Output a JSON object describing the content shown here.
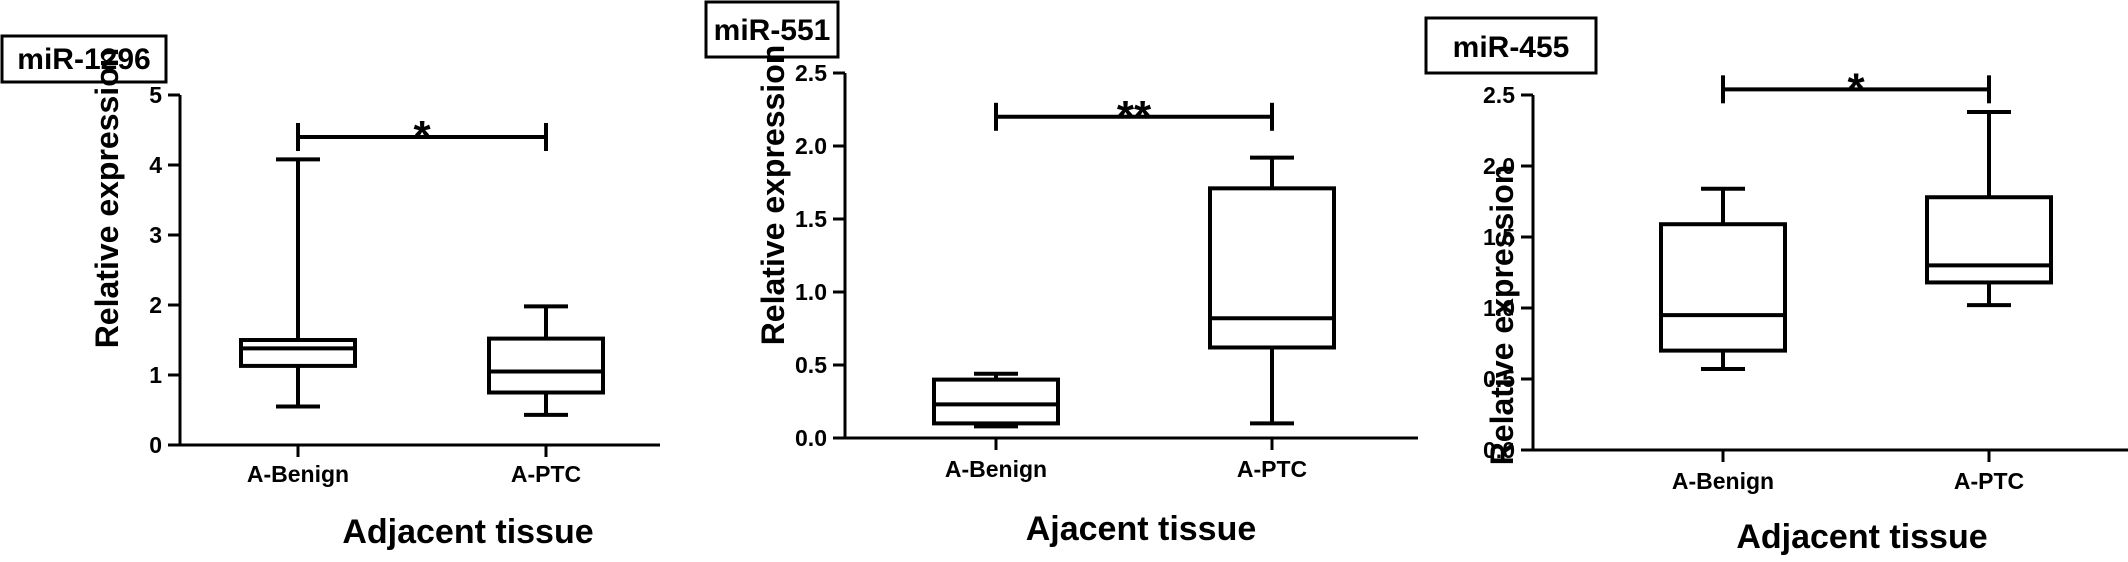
{
  "chart_data": [
    {
      "type": "box",
      "title": "miR-1296",
      "xlabel": "Adjacent tissue",
      "ylabel": "Relative expression",
      "ylim": [
        0,
        5
      ],
      "yticks": [
        "0",
        "1",
        "2",
        "3",
        "4",
        "5"
      ],
      "categories": [
        "A-Benign",
        "A-PTC"
      ],
      "boxes": [
        {
          "name": "A-Benign",
          "min": 0.55,
          "q1": 1.13,
          "median": 1.38,
          "q3": 1.5,
          "max": 4.08
        },
        {
          "name": "A-PTC",
          "min": 0.43,
          "q1": 0.75,
          "median": 1.05,
          "q3": 1.52,
          "max": 1.98
        }
      ],
      "significance": {
        "label": "*",
        "y": 4.4
      }
    },
    {
      "type": "box",
      "title": "miR-551",
      "xlabel": "Ajacent tissue",
      "ylabel": "Relative expression",
      "ylim": [
        0,
        2.5
      ],
      "yticks": [
        "0.0",
        "0.5",
        "1.0",
        "1.5",
        "2.0",
        "2.5"
      ],
      "categories": [
        "A-Benign",
        "A-PTC"
      ],
      "boxes": [
        {
          "name": "A-Benign",
          "min": 0.08,
          "q1": 0.1,
          "median": 0.23,
          "q3": 0.4,
          "max": 0.44
        },
        {
          "name": "A-PTC",
          "min": 0.1,
          "q1": 0.62,
          "median": 0.82,
          "q3": 1.71,
          "max": 1.92
        }
      ],
      "significance": {
        "label": "**",
        "y": 2.2
      }
    },
    {
      "type": "box",
      "title": "miR-455",
      "xlabel": "Adjacent tissue",
      "ylabel": "Relative expression",
      "ylim": [
        0,
        2.5
      ],
      "yticks": [
        "0.0",
        "0.5",
        "1.0",
        "1.5",
        "2.0",
        "2.5"
      ],
      "categories": [
        "A-Benign",
        "A-PTC"
      ],
      "boxes": [
        {
          "name": "A-Benign",
          "min": 0.57,
          "q1": 0.7,
          "median": 0.95,
          "q3": 1.59,
          "max": 1.84
        },
        {
          "name": "A-PTC",
          "min": 1.02,
          "q1": 1.18,
          "median": 1.3,
          "q3": 1.78,
          "max": 2.38
        }
      ],
      "significance": {
        "label": "*",
        "y": 2.54
      }
    }
  ]
}
